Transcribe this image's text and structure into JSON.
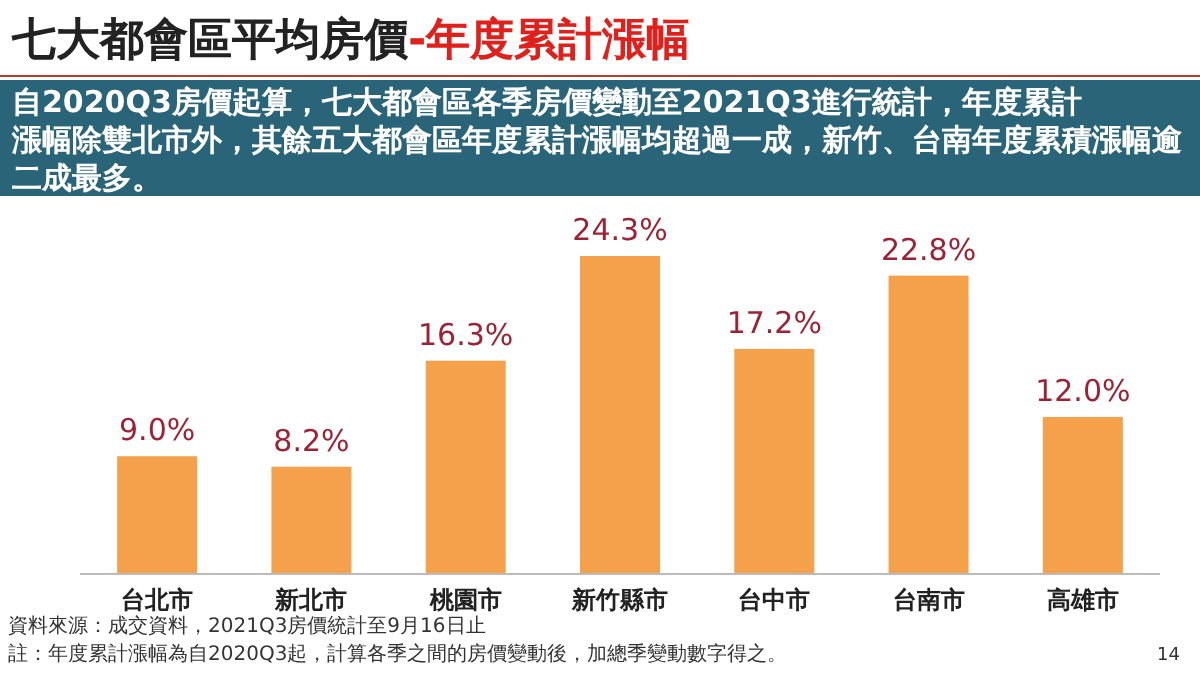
{
  "chart_data": {
    "type": "bar",
    "title": "七大都會區平均房價",
    "subtitle": "-年度累計漲幅",
    "categories": [
      "台北市",
      "新北市",
      "桃園市",
      "新竹縣市",
      "台中市",
      "台南市",
      "高雄市"
    ],
    "values": [
      9.0,
      8.2,
      16.3,
      24.3,
      17.2,
      22.8,
      12.0
    ],
    "value_labels": [
      "9.0%",
      "8.2%",
      "16.3%",
      "24.3%",
      "17.2%",
      "22.8%",
      "12.0%"
    ],
    "color": "#f5a04b",
    "annotations": [
      "自2020Q3房價起算，七大都會區各季房價變動至2021Q3進行統計，年度累計漲幅除雙北市外，其餘五大都會區年度累計漲幅均超過一成，新竹、台南年度累積漲幅逾二成最多。",
      "資料來源：成交資料，2021Q3房價統計至9月16日止",
      "註：年度累計漲幅為自2020Q3起，計算各季之間的房價變動後，加總季變動數字得之。",
      "14"
    ]
  }
}
